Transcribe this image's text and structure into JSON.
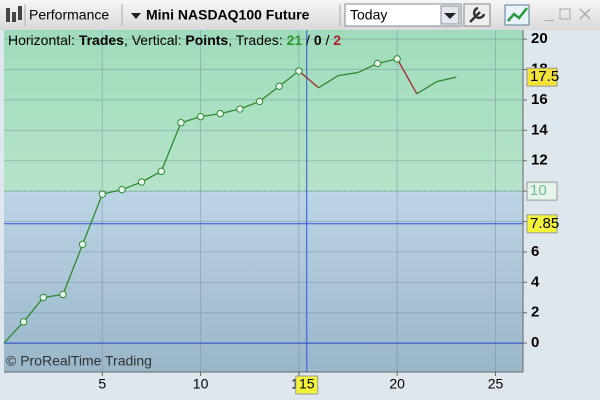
{
  "toolbar": {
    "view": "Performance",
    "instrument": "Mini NASDAQ100 Future",
    "period": "Today"
  },
  "chart_data": {
    "type": "line",
    "header": {
      "h_prefix": "Horizontal: ",
      "v_prefix": ", Vertical: ",
      "t_prefix": ", Trades: ",
      "sep1": " / ",
      "sep2": " / "
    },
    "x_label": "Trades",
    "y_label": "Points",
    "trades": {
      "wins": 21,
      "neutral": 0,
      "losses": 2
    },
    "x": [
      0,
      1,
      2,
      3,
      4,
      5,
      6,
      7,
      8,
      9,
      10,
      11,
      12,
      13,
      14,
      15,
      16,
      17,
      18,
      19,
      20,
      21,
      22,
      23
    ],
    "series": [
      {
        "name": "Points",
        "color": "#2e8b2e",
        "loss_color": "#a52a2a",
        "values": [
          0,
          1.4,
          3.0,
          3.2,
          6.5,
          9.8,
          10.1,
          10.6,
          11.3,
          14.5,
          14.9,
          15.1,
          15.4,
          15.9,
          16.9,
          17.9,
          16.8,
          17.6,
          17.8,
          18.4,
          18.7,
          16.4,
          17.2,
          17.5
        ]
      }
    ],
    "xlim": [
      0,
      26.4
    ],
    "ylim": [
      -1.9,
      20.6
    ],
    "xticks": [
      5,
      10,
      15,
      20,
      25
    ],
    "yticks": [
      0,
      2,
      4,
      6,
      8,
      10,
      12,
      14,
      16,
      18,
      20
    ],
    "grid": true,
    "threshold": 10,
    "crosshair": {
      "x": 15.4,
      "x_label": "15",
      "y": 7.85
    },
    "copyright": "© ProRealTime Trading"
  }
}
